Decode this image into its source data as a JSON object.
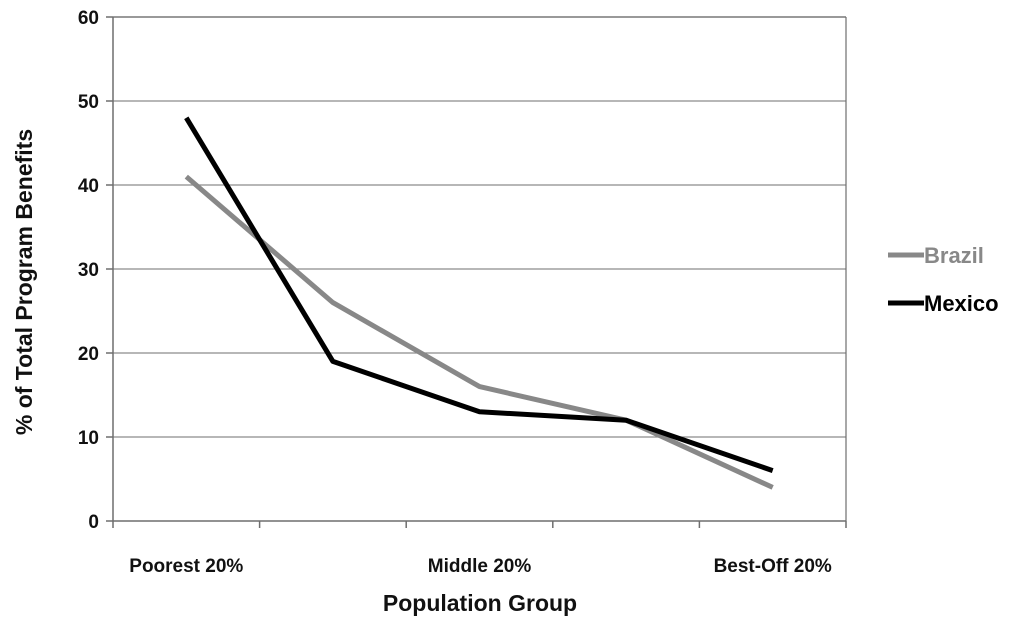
{
  "chart_data": {
    "type": "line",
    "title": "",
    "xlabel": "Population Group",
    "ylabel": "% of Total Program Benefits",
    "ylim": [
      0,
      60
    ],
    "yticks": [
      0,
      10,
      20,
      30,
      40,
      50,
      60
    ],
    "categories": [
      "Poorest 20%",
      "",
      "Middle 20%",
      "",
      "Best-Off 20%"
    ],
    "series": [
      {
        "name": "Brazil",
        "color": "#888888",
        "values": [
          41,
          26,
          16,
          12,
          4
        ]
      },
      {
        "name": "Mexico",
        "color": "#000000",
        "values": [
          48,
          19,
          13,
          12,
          6
        ]
      }
    ],
    "grid": true,
    "legend_position": "right"
  }
}
